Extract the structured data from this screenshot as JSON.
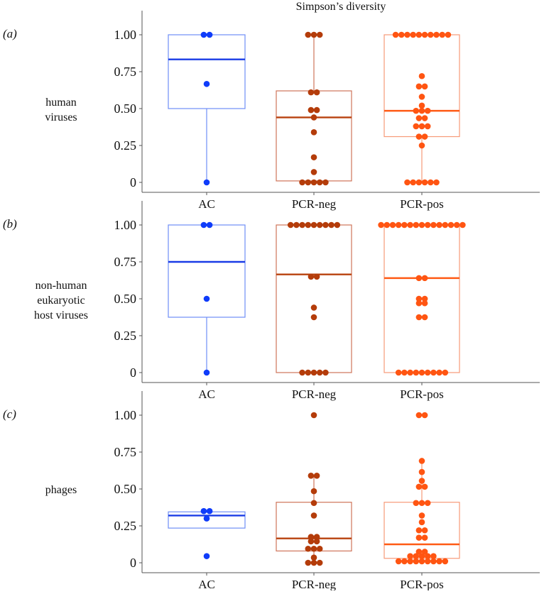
{
  "colors": {
    "AC": {
      "dot": "#0f3cfa",
      "box": "#6f8ef6",
      "median": "#1a3ce6"
    },
    "PCR-neg": {
      "dot": "#b43c0a",
      "box": "#cf7459",
      "median": "#b8420e"
    },
    "PCR-pos": {
      "dot": "#ff5512",
      "box": "#f79a78",
      "median": "#ff5a14"
    }
  },
  "chart_data": [
    {
      "type": "box-swarm",
      "title": "Simpson’s diversity",
      "panel_label": "(a)",
      "row_label": [
        "human",
        "viruses"
      ],
      "categories": [
        "AC",
        "PCR-neg",
        "PCR-pos"
      ],
      "yticks": [
        "0",
        "0.25",
        "0.50",
        "0.75",
        "1.00"
      ],
      "ytick_values": [
        0,
        0.25,
        0.5,
        0.75,
        1.0
      ],
      "ylim": [
        -0.05,
        1.05
      ],
      "groups": [
        {
          "name": "AC",
          "q1": 0.5,
          "median": 0.833,
          "q3": 1.0,
          "whisker_low": 0,
          "whisker_high": 1.0,
          "points": [
            1,
            1,
            0.667,
            0
          ]
        },
        {
          "name": "PCR-neg",
          "q1": 0.01,
          "median": 0.44,
          "q3": 0.62,
          "whisker_low": 0,
          "whisker_high": 1.0,
          "points": [
            1,
            1,
            1,
            0.61,
            0.61,
            0.49,
            0.49,
            0.44,
            0.34,
            0.17,
            0.07,
            0,
            0,
            0,
            0,
            0
          ]
        },
        {
          "name": "PCR-pos",
          "q1": 0.31,
          "median": 0.485,
          "q3": 1.0,
          "whisker_low": 0,
          "whisker_high": 1.0,
          "points": [
            1,
            1,
            1,
            1,
            1,
            1,
            1,
            1,
            1,
            1,
            0.72,
            0.65,
            0.65,
            0.58,
            0.52,
            0.485,
            0.485,
            0.485,
            0.435,
            0.435,
            0.38,
            0.38,
            0.38,
            0.31,
            0.31,
            0.25,
            0,
            0,
            0,
            0,
            0,
            0
          ]
        }
      ]
    },
    {
      "type": "box-swarm",
      "panel_label": "(b)",
      "row_label": [
        "non-human",
        "eukaryotic",
        "host viruses"
      ],
      "categories": [
        "AC",
        "PCR-neg",
        "PCR-pos"
      ],
      "yticks": [
        "0",
        "0.25",
        "0.50",
        "0.75",
        "1.00"
      ],
      "ytick_values": [
        0,
        0.25,
        0.5,
        0.75,
        1.0
      ],
      "ylim": [
        -0.05,
        1.05
      ],
      "groups": [
        {
          "name": "AC",
          "q1": 0.375,
          "median": 0.75,
          "q3": 1.0,
          "whisker_low": 0,
          "whisker_high": 1.0,
          "points": [
            1,
            1,
            0.5,
            0
          ]
        },
        {
          "name": "PCR-neg",
          "q1": 0,
          "median": 0.665,
          "q3": 1.0,
          "whisker_low": 0,
          "whisker_high": 1.0,
          "points": [
            1,
            1,
            1,
            1,
            1,
            1,
            1,
            1,
            1,
            0.65,
            0.65,
            0.44,
            0.375,
            0,
            0,
            0,
            0,
            0
          ]
        },
        {
          "name": "PCR-pos",
          "q1": 0,
          "median": 0.64,
          "q3": 1.0,
          "whisker_low": 0,
          "whisker_high": 1.0,
          "points": [
            1,
            1,
            1,
            1,
            1,
            1,
            1,
            1,
            1,
            1,
            1,
            1,
            1,
            1,
            1,
            0.64,
            0.64,
            0.5,
            0.5,
            0.47,
            0.47,
            0.375,
            0.375,
            0,
            0,
            0,
            0,
            0,
            0,
            0,
            0,
            0
          ]
        }
      ]
    },
    {
      "type": "box-swarm",
      "panel_label": "(c)",
      "row_label": [
        "phages"
      ],
      "categories": [
        "AC",
        "PCR-neg",
        "PCR-pos"
      ],
      "yticks": [
        "0",
        "0.25",
        "0.50",
        "0.75",
        "1.00"
      ],
      "ytick_values": [
        0,
        0.25,
        0.5,
        0.75,
        1.0
      ],
      "ylim": [
        -0.05,
        1.05
      ],
      "groups": [
        {
          "name": "AC",
          "q1": 0.235,
          "median": 0.32,
          "q3": 0.345,
          "whisker_low": 0.235,
          "whisker_high": 0.345,
          "points": [
            0.35,
            0.35,
            0.3,
            0.045
          ]
        },
        {
          "name": "PCR-neg",
          "q1": 0.08,
          "median": 0.165,
          "q3": 0.41,
          "whisker_low": 0,
          "whisker_high": 0.59,
          "points": [
            1.0,
            0.59,
            0.59,
            0.485,
            0.405,
            0.32,
            0.175,
            0.175,
            0.145,
            0.145,
            0.095,
            0.095,
            0.095,
            0.035,
            0,
            0,
            0
          ]
        },
        {
          "name": "PCR-pos",
          "q1": 0.03,
          "median": 0.125,
          "q3": 0.41,
          "whisker_low": 0.01,
          "whisker_high": 0.69,
          "points": [
            1,
            1,
            0.69,
            0.615,
            0.555,
            0.515,
            0.515,
            0.405,
            0.405,
            0.405,
            0.32,
            0.275,
            0.22,
            0.22,
            0.17,
            0.17,
            0.075,
            0.075,
            0.045,
            0.045,
            0.045,
            0.045,
            0.045,
            0.01,
            0.01,
            0.01,
            0.01,
            0.01,
            0.01,
            0.01,
            0.01,
            0.01
          ]
        }
      ]
    }
  ]
}
